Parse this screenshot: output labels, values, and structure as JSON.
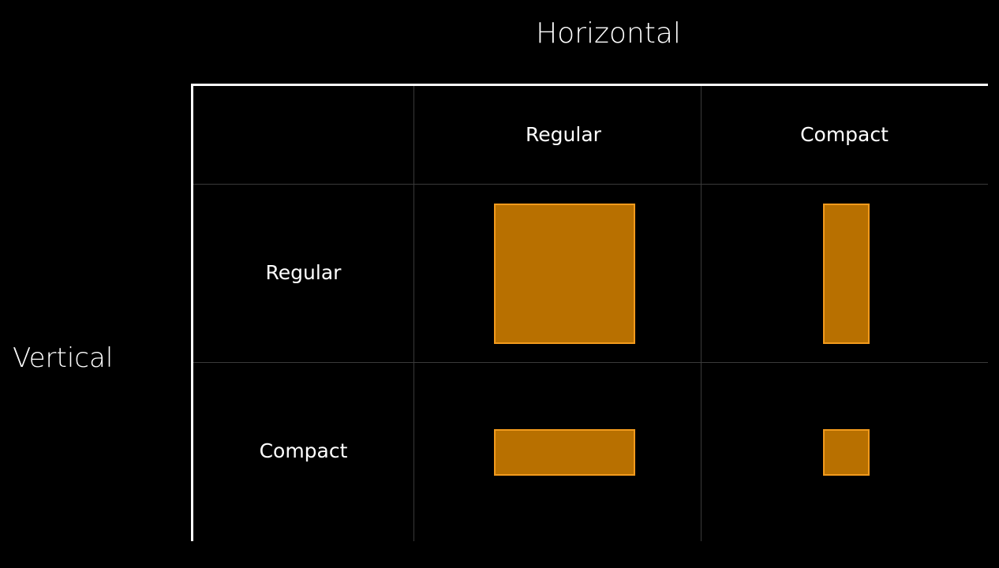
{
  "titles": {
    "horizontal": "Horizontal",
    "vertical": "Vertical"
  },
  "columns": [
    {
      "label": "Regular"
    },
    {
      "label": "Compact"
    }
  ],
  "rows": [
    {
      "label": "Regular"
    },
    {
      "label": "Compact"
    }
  ],
  "colors": {
    "background": "#000000",
    "text": "#ffffff",
    "axis_line": "#ffffff",
    "grid_line": "#3a3a3a",
    "box_fill": "#b87000",
    "box_border": "#f29a1c"
  }
}
